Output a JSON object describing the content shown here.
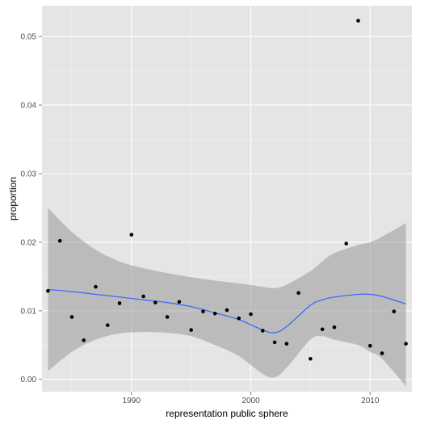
{
  "chart_data": {
    "type": "scatter",
    "xlabel": "representation public sphere",
    "ylabel": "proportion",
    "xlim": [
      1982.5,
      2013.5
    ],
    "ylim": [
      -0.0018,
      0.0545
    ],
    "x_ticks": [
      1990,
      2000,
      2010
    ],
    "x_tick_labels": [
      "1990",
      "2000",
      "2010"
    ],
    "y_ticks": [
      0.0,
      0.01,
      0.02,
      0.03,
      0.04,
      0.05
    ],
    "y_tick_labels": [
      "0.00",
      "0.01",
      "0.02",
      "0.03",
      "0.04",
      "0.05"
    ],
    "grid": true,
    "colors": {
      "panel": "#e5e5e5",
      "grid_major": "#ffffff",
      "grid_minor": "#f2f2f2",
      "points": "#000000",
      "smooth_line": "#3366ff",
      "ribbon": "#999999"
    },
    "points": [
      {
        "x": 1983,
        "y": 0.0129
      },
      {
        "x": 1984,
        "y": 0.0202
      },
      {
        "x": 1985,
        "y": 0.0091
      },
      {
        "x": 1986,
        "y": 0.0057
      },
      {
        "x": 1987,
        "y": 0.0135
      },
      {
        "x": 1988,
        "y": 0.0079
      },
      {
        "x": 1989,
        "y": 0.0111
      },
      {
        "x": 1990,
        "y": 0.0211
      },
      {
        "x": 1991,
        "y": 0.0121
      },
      {
        "x": 1992,
        "y": 0.0112
      },
      {
        "x": 1993,
        "y": 0.0091
      },
      {
        "x": 1994,
        "y": 0.0113
      },
      {
        "x": 1995,
        "y": 0.0072
      },
      {
        "x": 1996,
        "y": 0.0099
      },
      {
        "x": 1997,
        "y": 0.0096
      },
      {
        "x": 1998,
        "y": 0.0101
      },
      {
        "x": 1999,
        "y": 0.0089
      },
      {
        "x": 2000,
        "y": 0.0095
      },
      {
        "x": 2001,
        "y": 0.0071
      },
      {
        "x": 2002,
        "y": 0.0054
      },
      {
        "x": 2003,
        "y": 0.0052
      },
      {
        "x": 2004,
        "y": 0.0126
      },
      {
        "x": 2005,
        "y": 0.003
      },
      {
        "x": 2006,
        "y": 0.0073
      },
      {
        "x": 2007,
        "y": 0.0076
      },
      {
        "x": 2008,
        "y": 0.0198
      },
      {
        "x": 2009,
        "y": 0.0523
      },
      {
        "x": 2010,
        "y": 0.0049
      },
      {
        "x": 2011,
        "y": 0.0038
      },
      {
        "x": 2012,
        "y": 0.0099
      },
      {
        "x": 2013,
        "y": 0.0052
      }
    ],
    "smooth": {
      "x": [
        1983,
        1985,
        1987,
        1989,
        1991,
        1993,
        1995,
        1997,
        1999,
        2001,
        2002,
        2003,
        2005,
        2006,
        2007,
        2009,
        2010,
        2011,
        2013
      ],
      "y": [
        0.0131,
        0.0128,
        0.0124,
        0.012,
        0.0116,
        0.0112,
        0.0106,
        0.0097,
        0.0087,
        0.0072,
        0.0068,
        0.0077,
        0.0108,
        0.0116,
        0.012,
        0.0124,
        0.0124,
        0.0121,
        0.011
      ],
      "upper": [
        0.025,
        0.0215,
        0.0189,
        0.0172,
        0.0162,
        0.0155,
        0.0149,
        0.0144,
        0.014,
        0.0135,
        0.0133,
        0.0138,
        0.0158,
        0.0172,
        0.0184,
        0.0196,
        0.02,
        0.0208,
        0.0228
      ],
      "lower": [
        0.0012,
        0.004,
        0.0058,
        0.0067,
        0.0069,
        0.0068,
        0.0063,
        0.005,
        0.0034,
        0.0008,
        0.0003,
        0.0017,
        0.0058,
        0.0063,
        0.0058,
        0.005,
        0.004,
        0.003,
        -0.001
      ]
    }
  }
}
